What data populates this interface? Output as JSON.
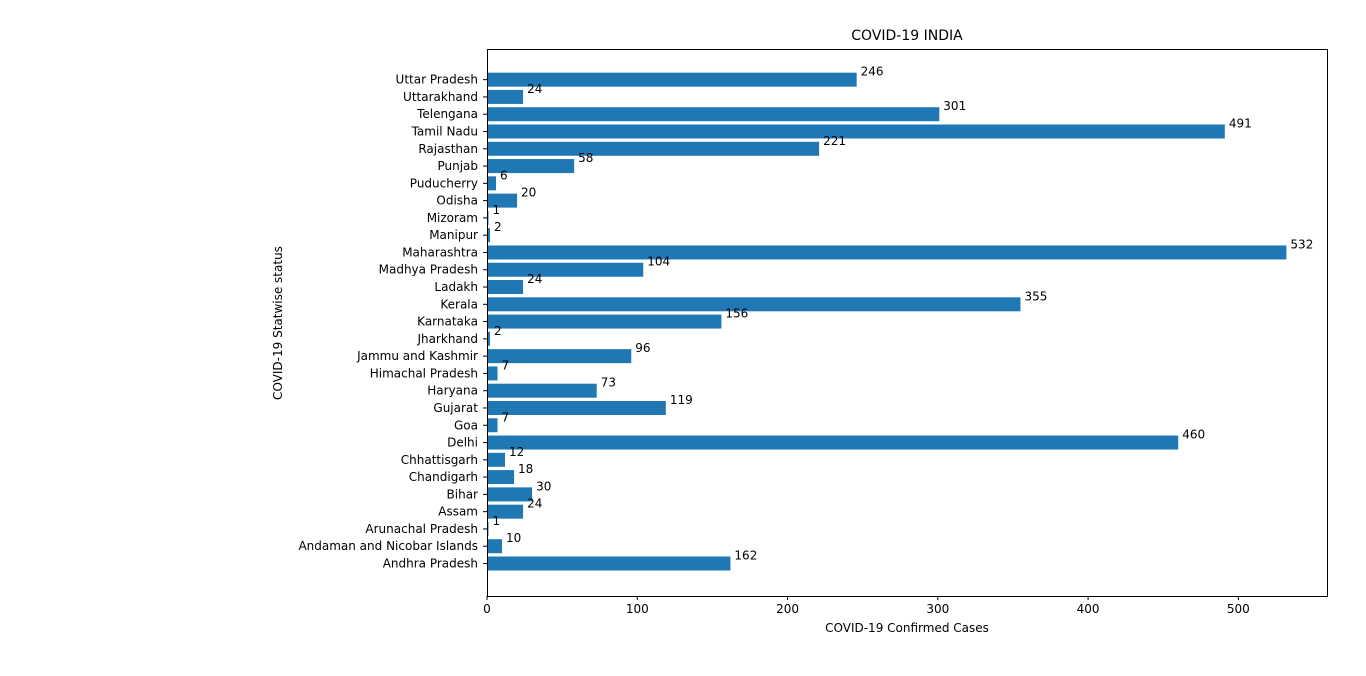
{
  "chart_data": {
    "type": "bar",
    "orientation": "horizontal",
    "title": "COVID-19 INDIA",
    "xlabel": "COVID-19 Confirmed Cases",
    "ylabel": "COVID-19 Statwise status",
    "xlim": [
      0,
      559
    ],
    "xticks": [
      0,
      100,
      200,
      300,
      400,
      500
    ],
    "bar_color": "#1f77b4",
    "data_labels": true,
    "grid": false,
    "categories": [
      "Andhra Pradesh",
      "Andaman and Nicobar Islands",
      "Arunachal Pradesh",
      "Assam",
      "Bihar",
      "Chandigarh",
      "Chhattisgarh",
      "Delhi",
      "Goa",
      "Gujarat",
      "Haryana",
      "Himachal Pradesh",
      "Jammu and Kashmir",
      "Jharkhand",
      "Karnataka",
      "Kerala",
      "Ladakh",
      "Madhya Pradesh",
      "Maharashtra",
      "Manipur",
      "Mizoram",
      "Odisha",
      "Puducherry",
      "Punjab",
      "Rajasthan",
      "Tamil Nadu",
      "Telengana",
      "Uttarakhand",
      "Uttar Pradesh"
    ],
    "values": [
      162,
      10,
      1,
      24,
      30,
      18,
      12,
      460,
      7,
      119,
      73,
      7,
      96,
      2,
      156,
      355,
      24,
      104,
      532,
      2,
      1,
      20,
      6,
      58,
      221,
      491,
      301,
      24,
      246
    ]
  }
}
